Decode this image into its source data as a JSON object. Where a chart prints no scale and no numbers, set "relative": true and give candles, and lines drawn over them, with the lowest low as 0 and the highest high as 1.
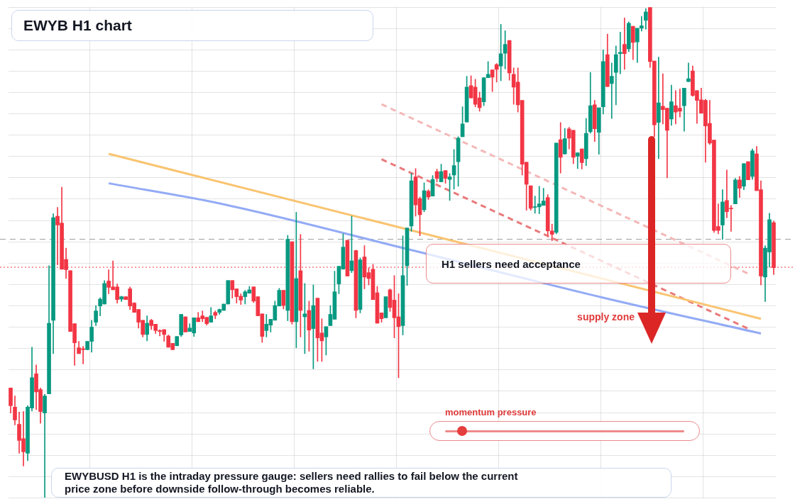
{
  "chart_data": {
    "type": "candlestick",
    "title": "EWYB H1 chart",
    "relative": true,
    "grid": true,
    "categories": [
      null,
      null,
      null,
      null,
      null,
      null,
      null,
      null,
      null,
      null,
      null,
      null,
      null,
      null,
      null,
      null,
      null,
      null,
      null,
      null,
      null,
      null,
      null,
      null,
      null,
      null,
      null,
      null,
      null,
      null,
      null,
      null,
      null,
      null,
      null,
      null,
      null,
      null,
      null,
      null,
      null,
      null,
      null,
      null,
      null,
      null,
      null,
      null,
      null,
      null,
      null,
      null,
      null,
      null,
      null,
      null,
      null,
      null,
      null,
      null,
      null,
      null,
      null,
      null,
      null,
      null,
      null,
      null,
      null,
      null,
      null,
      null,
      null,
      null,
      null,
      null,
      null,
      null,
      null,
      null,
      null,
      null,
      null,
      null,
      null,
      null,
      null,
      null,
      null,
      null,
      null,
      null,
      null,
      null,
      null,
      null,
      null,
      null,
      null,
      null,
      null,
      null,
      null,
      null,
      null,
      null,
      null,
      null,
      null,
      null,
      null,
      null,
      null,
      null,
      null,
      null,
      null,
      null,
      null,
      null,
      null,
      null,
      null,
      null,
      null,
      null,
      null,
      null,
      null,
      null,
      null,
      null,
      null,
      null,
      null,
      null,
      null,
      null,
      null,
      null,
      null,
      null,
      null,
      null,
      null,
      null,
      null,
      null,
      null,
      null,
      null,
      null,
      null,
      null,
      null,
      null,
      null,
      null,
      null,
      null,
      null,
      null,
      null,
      null,
      null,
      null,
      null,
      null,
      null,
      null,
      null,
      null,
      null,
      null,
      null,
      null,
      null,
      null,
      null,
      null
    ],
    "ohlc": [
      [
        0.224,
        0.224,
        0.173,
        0.188
      ],
      [
        0.185,
        0.208,
        0.149,
        0.159
      ],
      [
        0.15,
        0.175,
        0.091,
        0.117
      ],
      [
        0.121,
        0.176,
        0.065,
        0.094
      ],
      [
        0.091,
        0.188,
        0.076,
        0.185
      ],
      [
        0.183,
        0.307,
        0.177,
        0.245
      ],
      [
        0.253,
        0.271,
        0.18,
        0.216
      ],
      [
        0.221,
        0.224,
        0.152,
        0.176
      ],
      [
        0.173,
        0.211,
        0,
        0.208
      ],
      [
        0.212,
        0.473,
        0.212,
        0.356
      ],
      [
        0.362,
        0.579,
        0.294,
        0.571
      ],
      [
        0.574,
        0.592,
        0.475,
        0.556
      ],
      [
        0.56,
        0.633,
        0.466,
        0.466
      ],
      [
        0.486,
        0.509,
        0.447,
        0.465
      ],
      [
        0.463,
        0.463,
        0.339,
        0.339
      ],
      [
        0.355,
        0.355,
        0.27,
        0.316
      ],
      [
        0.306,
        0.319,
        0.294,
        0.294
      ],
      [
        0.304,
        0.309,
        0.273,
        0.302
      ],
      [
        0.302,
        0.319,
        0.302,
        0.319
      ],
      [
        0.319,
        0.362,
        0.297,
        0.348
      ],
      [
        0.358,
        0.392,
        0.351,
        0.381
      ],
      [
        0.391,
        0.408,
        0.371,
        0.405
      ],
      [
        0.395,
        0.443,
        0.395,
        0.437
      ],
      [
        0.442,
        0.465,
        0.416,
        0.429
      ],
      [
        0.43,
        0.483,
        0.424,
        0.424
      ],
      [
        0.43,
        0.436,
        0.397,
        0.404
      ],
      [
        0.405,
        0.411,
        0.4,
        0.41
      ],
      [
        0.41,
        0.41,
        0.404,
        0.404
      ],
      [
        0.426,
        0.43,
        0.384,
        0.391
      ],
      [
        0.397,
        0.398,
        0.378,
        0.378
      ],
      [
        0.384,
        0.384,
        0.346,
        0.358
      ],
      [
        0.362,
        0.362,
        0.328,
        0.333
      ],
      [
        0.333,
        0.371,
        0.32,
        0.356
      ],
      [
        0.362,
        0.364,
        0.343,
        0.351
      ],
      [
        0.354,
        0.354,
        0.335,
        0.341
      ],
      [
        0.341,
        0.343,
        0.33,
        0.339
      ],
      [
        0.343,
        0.343,
        0.319,
        0.333
      ],
      [
        0.33,
        0.332,
        0.307,
        0.307
      ],
      [
        0.315,
        0.315,
        0.302,
        0.302
      ],
      [
        0.31,
        0.329,
        0.31,
        0.329
      ],
      [
        0.332,
        0.374,
        0.329,
        0.374
      ],
      [
        0.369,
        0.369,
        0.338,
        0.338
      ],
      [
        0.339,
        0.355,
        0.339,
        0.346
      ],
      [
        0.336,
        0.367,
        0.329,
        0.367
      ],
      [
        0.367,
        0.378,
        0.359,
        0.359
      ],
      [
        0.371,
        0.381,
        0.359,
        0.365
      ],
      [
        0.368,
        0.368,
        0.352,
        0.355
      ],
      [
        0.358,
        0.388,
        0.358,
        0.371
      ],
      [
        0.378,
        0.381,
        0.365,
        0.372
      ],
      [
        0.378,
        0.385,
        0.374,
        0.384
      ],
      [
        0.382,
        0.395,
        0.382,
        0.395
      ],
      [
        0.395,
        0.443,
        0.395,
        0.443
      ],
      [
        0.443,
        0.443,
        0.407,
        0.424
      ],
      [
        0.426,
        0.426,
        0.397,
        0.41
      ],
      [
        0.411,
        0.416,
        0.394,
        0.403
      ],
      [
        0.41,
        0.423,
        0.395,
        0.42
      ],
      [
        0.417,
        0.431,
        0.417,
        0.424
      ],
      [
        0.43,
        0.43,
        0.398,
        0.401
      ],
      [
        0.41,
        0.41,
        0.371,
        0.371
      ],
      [
        0.375,
        0.375,
        0.317,
        0.329
      ],
      [
        0.341,
        0.374,
        0.328,
        0.354
      ],
      [
        0.352,
        0.364,
        0.338,
        0.364
      ],
      [
        0.362,
        0.401,
        0.362,
        0.392
      ],
      [
        0.391,
        0.427,
        0.391,
        0.423
      ],
      [
        0.423,
        0.423,
        0.385,
        0.392
      ],
      [
        0.382,
        0.535,
        0.361,
        0.527
      ],
      [
        0.522,
        0.522,
        0.354,
        0.359
      ],
      [
        0.359,
        0.582,
        0.306,
        0.447
      ],
      [
        0.463,
        0.537,
        0.328,
        0.382
      ],
      [
        0.369,
        0.437,
        0.294,
        0.375
      ],
      [
        0.382,
        0.401,
        0.299,
        0.342
      ],
      [
        0.345,
        0.434,
        0.263,
        0.392
      ],
      [
        0.407,
        0.407,
        0.278,
        0.326
      ],
      [
        0.336,
        0.365,
        0.278,
        0.32
      ],
      [
        0.328,
        0.349,
        0.291,
        0.349
      ],
      [
        0.351,
        0.392,
        0.351,
        0.374
      ],
      [
        0.364,
        0.462,
        0.364,
        0.42
      ],
      [
        0.436,
        0.472,
        0.416,
        0.472
      ],
      [
        0.466,
        0.538,
        0.466,
        0.511
      ],
      [
        0.525,
        0.525,
        0.452,
        0.452
      ],
      [
        0.463,
        0.574,
        0.459,
        0.483
      ],
      [
        0.504,
        0.505,
        0.367,
        0.382
      ],
      [
        0.384,
        0.489,
        0.377,
        0.485
      ],
      [
        0.491,
        0.514,
        0.426,
        0.45
      ],
      [
        0.459,
        0.469,
        0.434,
        0.447
      ],
      [
        0.466,
        0.476,
        0.404,
        0.404
      ],
      [
        0.418,
        0.431,
        0.356,
        0.356
      ],
      [
        0.377,
        0.377,
        0.358,
        0.365
      ],
      [
        0.367,
        0.41,
        0.367,
        0.41
      ],
      [
        0.424,
        0.426,
        0.38,
        0.388
      ],
      [
        0.403,
        0.453,
        0.326,
        0.367
      ],
      [
        0.369,
        0.416,
        0.245,
        0.349
      ],
      [
        0.351,
        0.534,
        0.332,
        0.453
      ],
      [
        0.473,
        0.55,
        0.433,
        0.55
      ],
      [
        0.554,
        0.661,
        0.543,
        0.646
      ],
      [
        0.654,
        0.671,
        0.574,
        0.597
      ],
      [
        0.61,
        0.613,
        0.534,
        0.577
      ],
      [
        0.587,
        0.642,
        0.583,
        0.626
      ],
      [
        0.625,
        0.628,
        0.608,
        0.613
      ],
      [
        0.615,
        0.657,
        0.615,
        0.649
      ],
      [
        0.665,
        0.67,
        0.644,
        0.651
      ],
      [
        0.644,
        0.68,
        0.644,
        0.665
      ],
      [
        0.667,
        0.667,
        0.641,
        0.651
      ],
      [
        0.649,
        0.661,
        0.606,
        0.654
      ],
      [
        0.658,
        0.71,
        0.629,
        0.677
      ],
      [
        0.685,
        0.736,
        0.635,
        0.733
      ],
      [
        0.736,
        0.797,
        0.736,
        0.762
      ],
      [
        0.766,
        0.859,
        0.766,
        0.837
      ],
      [
        0.84,
        0.86,
        0.815,
        0.815
      ],
      [
        0.837,
        0.853,
        0.797,
        0.802
      ],
      [
        0.815,
        0.827,
        0.788,
        0.795
      ],
      [
        0.807,
        0.857,
        0.799,
        0.856
      ],
      [
        0.856,
        0.889,
        0.856,
        0.863
      ],
      [
        0.872,
        0.872,
        0.828,
        0.857
      ],
      [
        0.883,
        0.885,
        0.847,
        0.873
      ],
      [
        0.88,
        0.965,
        0.85,
        0.905
      ],
      [
        0.906,
        0.952,
        0.874,
        0.924
      ],
      [
        0.932,
        0.932,
        0.851,
        0.866
      ],
      [
        0.863,
        0.876,
        0.802,
        0.837
      ],
      [
        0.847,
        0.876,
        0.786,
        0.801
      ],
      [
        0.81,
        0.81,
        0.658,
        0.68
      ],
      [
        0.684,
        0.684,
        0.586,
        0.639
      ],
      [
        0.636,
        0.636,
        0.586,
        0.59
      ],
      [
        0.592,
        0.615,
        0.58,
        0.593
      ],
      [
        0.593,
        0.635,
        0.579,
        0.599
      ],
      [
        0.596,
        0.631,
        0.596,
        0.605
      ],
      [
        0.612,
        0.618,
        0.535,
        0.544
      ],
      [
        0.544,
        0.558,
        0.524,
        0.537
      ],
      [
        0.541,
        0.723,
        0.538,
        0.723
      ],
      [
        0.73,
        0.765,
        0.662,
        0.694
      ],
      [
        0.701,
        0.753,
        0.7,
        0.732
      ],
      [
        0.752,
        0.755,
        0.711,
        0.733
      ],
      [
        0.749,
        0.749,
        0.681,
        0.694
      ],
      [
        0.696,
        0.703,
        0.671,
        0.703
      ],
      [
        0.711,
        0.711,
        0.67,
        0.683
      ],
      [
        0.691,
        0.773,
        0.677,
        0.743
      ],
      [
        0.746,
        0.867,
        0.743,
        0.799
      ],
      [
        0.801,
        0.81,
        0.726,
        0.752
      ],
      [
        0.745,
        0.795,
        0.7,
        0.795
      ],
      [
        0.797,
        0.913,
        0.782,
        0.889
      ],
      [
        0.903,
        0.945,
        0.838,
        0.838
      ],
      [
        0.844,
        0.886,
        0.773,
        0.859
      ],
      [
        0.867,
        0.921,
        0.801,
        0.903
      ],
      [
        0.905,
        0.949,
        0.864,
        0.908
      ],
      [
        0.924,
        0.978,
        0.873,
        0.905
      ],
      [
        0.915,
        0.97,
        0.909,
        0.967
      ],
      [
        0.961,
        0.961,
        0.893,
        0.928
      ],
      [
        0.929,
        0.957,
        0.887,
        0.957
      ],
      [
        0.957,
        0.981,
        0.951,
        0.962
      ],
      [
        0.973,
        0.997,
        0.955,
        0.99
      ],
      [
        0.999,
        1,
        0.877,
        0.889
      ],
      [
        0.89,
        0.89,
        0.736,
        0.76
      ],
      [
        0.765,
        0.898,
        0.691,
        0.805
      ],
      [
        0.798,
        0.864,
        0.762,
        0.791
      ],
      [
        0.794,
        0.794,
        0.652,
        0.749
      ],
      [
        0.772,
        0.841,
        0.759,
        0.807
      ],
      [
        0.799,
        0.83,
        0.762,
        0.786
      ],
      [
        0.794,
        0.833,
        0.776,
        0.788
      ],
      [
        0.799,
        0.835,
        0.747,
        0.835
      ],
      [
        0.848,
        0.886,
        0.848,
        0.854
      ],
      [
        0.87,
        0.88,
        0.818,
        0.82
      ],
      [
        0.83,
        0.83,
        0.763,
        0.81
      ],
      [
        0.811,
        0.835,
        0.784,
        0.784
      ],
      [
        0.81,
        0.812,
        0.684,
        0.758
      ],
      [
        0.763,
        0.81,
        0.72,
        0.723
      ],
      [
        0.729,
        0.729,
        0.541,
        0.545
      ],
      [
        0.553,
        0.599,
        0.538,
        0.545
      ],
      [
        0.556,
        0.628,
        0.527,
        0.603
      ],
      [
        0.606,
        0.668,
        0.571,
        0.583
      ],
      [
        0.59,
        0.596,
        0.543,
        0.589
      ],
      [
        0.599,
        0.651,
        0.599,
        0.648
      ],
      [
        0.648,
        0.655,
        0.612,
        0.631
      ],
      [
        0.635,
        0.681,
        0.628,
        0.681
      ],
      [
        0.685,
        0.685,
        0.648,
        0.648
      ],
      [
        0.655,
        0.711,
        0.649,
        0.707
      ],
      [
        0.701,
        0.716,
        0.626,
        0.626
      ],
      [
        0.628,
        0.646,
        0.434,
        0.452
      ],
      [
        0.45,
        0.514,
        0.4,
        0.509
      ],
      [
        0.501,
        0.58,
        0.47,
        0.567
      ],
      [
        0.561,
        0.564,
        0.455,
        0.469
      ]
    ],
    "series": [
      {
        "type": "line",
        "color": "#f9c471",
        "line_style": "solid",
        "values": [
          null,
          null,
          null,
          null,
          null,
          null,
          null,
          null,
          null,
          null,
          null,
          null,
          null,
          null,
          null,
          null,
          null,
          null,
          null,
          null,
          null,
          null,
          null,
          0.701,
          null,
          null,
          null,
          null,
          null,
          null,
          null,
          null,
          null,
          null,
          null,
          null,
          null,
          null,
          null,
          null,
          null,
          null,
          null,
          null,
          null,
          null,
          null,
          null,
          null,
          null,
          null,
          null,
          null,
          null,
          null,
          null,
          null,
          null,
          null,
          null,
          null,
          null,
          null,
          null,
          null,
          null,
          null,
          null,
          null,
          null,
          null,
          null,
          null,
          null,
          null,
          null,
          null,
          null,
          null,
          null,
          null,
          null,
          null,
          null,
          null,
          null,
          null,
          null,
          null,
          null,
          null,
          null,
          null,
          null,
          null,
          null,
          null,
          null,
          null,
          null,
          null,
          null,
          null,
          null,
          null,
          null,
          null,
          null,
          null,
          null,
          null,
          null,
          null,
          null,
          null,
          null,
          null,
          null,
          null,
          null,
          null,
          null,
          null,
          null,
          null,
          null,
          null,
          null,
          null,
          null,
          null,
          null,
          null,
          null,
          null,
          null,
          null,
          null,
          null,
          null,
          null,
          null,
          null,
          null,
          null,
          null,
          null,
          null,
          null,
          null,
          null,
          null,
          null,
          null,
          null,
          null,
          null,
          null,
          null,
          null,
          null,
          null,
          null,
          null,
          null,
          null,
          null,
          null,
          null,
          null,
          null,
          null,
          null,
          null,
          null,
          null,
          0.365,
          null,
          null,
          null
        ]
      },
      {
        "type": "line",
        "color": "#93abf5",
        "line_style": "solid",
        "values": [
          null,
          null,
          null,
          null,
          null,
          null,
          null,
          null,
          null,
          null,
          null,
          null,
          null,
          null,
          null,
          null,
          null,
          null,
          null,
          null,
          null,
          null,
          null,
          0.641,
          null,
          null,
          null,
          null,
          null,
          null,
          null,
          null,
          null,
          null,
          null,
          null,
          null,
          null,
          null,
          null,
          null,
          null,
          null,
          null,
          null,
          null,
          null,
          null,
          null,
          0.6,
          null,
          null,
          null,
          null,
          null,
          null,
          null,
          null,
          null,
          null,
          null,
          null,
          null,
          null,
          null,
          null,
          null,
          null,
          null,
          null,
          null,
          null,
          null,
          null,
          null,
          null,
          null,
          null,
          null,
          null,
          null,
          null,
          null,
          null,
          null,
          null,
          null,
          null,
          null,
          null,
          null,
          null,
          null,
          null,
          0.505,
          null,
          null,
          null,
          null,
          null,
          null,
          null,
          null,
          null,
          null,
          null,
          null,
          null,
          null,
          null,
          null,
          null,
          null,
          null,
          null,
          null,
          null,
          null,
          null,
          null,
          null,
          null,
          null,
          null,
          null,
          null,
          null,
          null,
          null,
          null,
          null,
          null,
          null,
          null,
          null,
          null,
          null,
          null,
          null,
          0.408,
          null,
          null,
          null,
          null,
          null,
          null,
          null,
          null,
          null,
          null,
          null,
          null,
          null,
          null,
          null,
          null,
          null,
          null,
          null,
          null,
          null,
          null,
          null,
          null,
          null,
          null,
          null,
          null,
          null,
          null,
          null,
          null,
          null,
          null,
          null,
          null,
          0.335,
          null,
          null,
          null
        ]
      },
      {
        "type": "line",
        "color": "#e97a7b",
        "line_style": "dashed",
        "values": [
          null,
          null,
          null,
          null,
          null,
          null,
          null,
          null,
          null,
          null,
          null,
          null,
          null,
          null,
          null,
          null,
          null,
          null,
          null,
          null,
          null,
          null,
          null,
          null,
          null,
          null,
          null,
          null,
          null,
          null,
          null,
          null,
          null,
          null,
          null,
          null,
          null,
          null,
          null,
          null,
          null,
          null,
          null,
          null,
          null,
          null,
          null,
          null,
          null,
          null,
          null,
          null,
          null,
          null,
          null,
          null,
          null,
          null,
          null,
          null,
          null,
          null,
          null,
          null,
          null,
          null,
          null,
          null,
          null,
          null,
          null,
          null,
          null,
          null,
          null,
          null,
          null,
          null,
          null,
          null,
          null,
          null,
          null,
          null,
          null,
          null,
          null,
          0.69,
          null,
          null,
          null,
          null,
          null,
          null,
          null,
          null,
          null,
          null,
          null,
          null,
          null,
          null,
          null,
          null,
          null,
          null,
          null,
          null,
          null,
          null,
          null,
          null,
          null,
          null,
          null,
          null,
          null,
          null,
          null,
          null,
          null,
          null,
          null,
          null,
          null,
          null,
          null,
          null,
          null,
          null,
          null,
          null,
          null,
          null,
          null,
          null,
          null,
          null,
          null,
          null,
          null,
          null,
          null,
          null,
          null,
          null,
          null,
          null,
          null,
          null,
          null,
          null,
          null,
          null,
          null,
          null,
          null,
          null,
          null,
          null,
          null,
          null,
          null,
          null,
          null,
          null,
          null,
          null,
          null,
          null,
          null,
          null,
          null,
          0.345,
          null,
          null,
          null,
          null,
          null,
          null
        ]
      },
      {
        "type": "line",
        "color": "#f4b8b8",
        "line_style": "dashed",
        "values": [
          null,
          null,
          null,
          null,
          null,
          null,
          null,
          null,
          null,
          null,
          null,
          null,
          null,
          null,
          null,
          null,
          null,
          null,
          null,
          null,
          null,
          null,
          null,
          null,
          null,
          null,
          null,
          null,
          null,
          null,
          null,
          null,
          null,
          null,
          null,
          null,
          null,
          null,
          null,
          null,
          null,
          null,
          null,
          null,
          null,
          null,
          null,
          null,
          null,
          null,
          null,
          null,
          null,
          null,
          null,
          null,
          null,
          null,
          null,
          null,
          null,
          null,
          null,
          null,
          null,
          null,
          null,
          null,
          null,
          null,
          null,
          null,
          null,
          null,
          null,
          null,
          null,
          null,
          null,
          null,
          null,
          null,
          null,
          null,
          null,
          null,
          null,
          0.802,
          null,
          null,
          null,
          null,
          null,
          null,
          null,
          null,
          null,
          null,
          null,
          null,
          null,
          null,
          null,
          null,
          null,
          null,
          null,
          null,
          null,
          null,
          null,
          null,
          null,
          null,
          null,
          null,
          null,
          null,
          null,
          null,
          null,
          null,
          null,
          null,
          null,
          null,
          null,
          null,
          null,
          null,
          null,
          null,
          null,
          null,
          null,
          null,
          null,
          null,
          null,
          null,
          null,
          null,
          null,
          null,
          null,
          null,
          null,
          null,
          null,
          null,
          null,
          null,
          null,
          null,
          null,
          null,
          null,
          null,
          null,
          null,
          null,
          null,
          null,
          null,
          null,
          null,
          null,
          null,
          null,
          null,
          null,
          null,
          null,
          0.457,
          null,
          null,
          null,
          null,
          null,
          null
        ]
      }
    ],
    "ref_lines": [
      {
        "axis": "y",
        "value": 0.527,
        "color": "#9e9e9e",
        "line_style": "dashed"
      },
      {
        "axis": "y",
        "value": 0.47,
        "color": "#f23645",
        "line_style": "dotted"
      }
    ],
    "annotations": [
      "H1 sellers need acceptance",
      "supply zone",
      "momentum pressure",
      "EWYBUSD H1 is the intraday pressure gauge: sellers need rallies to fail below the current price zone before downside follow-through becomes reliable."
    ]
  }
}
